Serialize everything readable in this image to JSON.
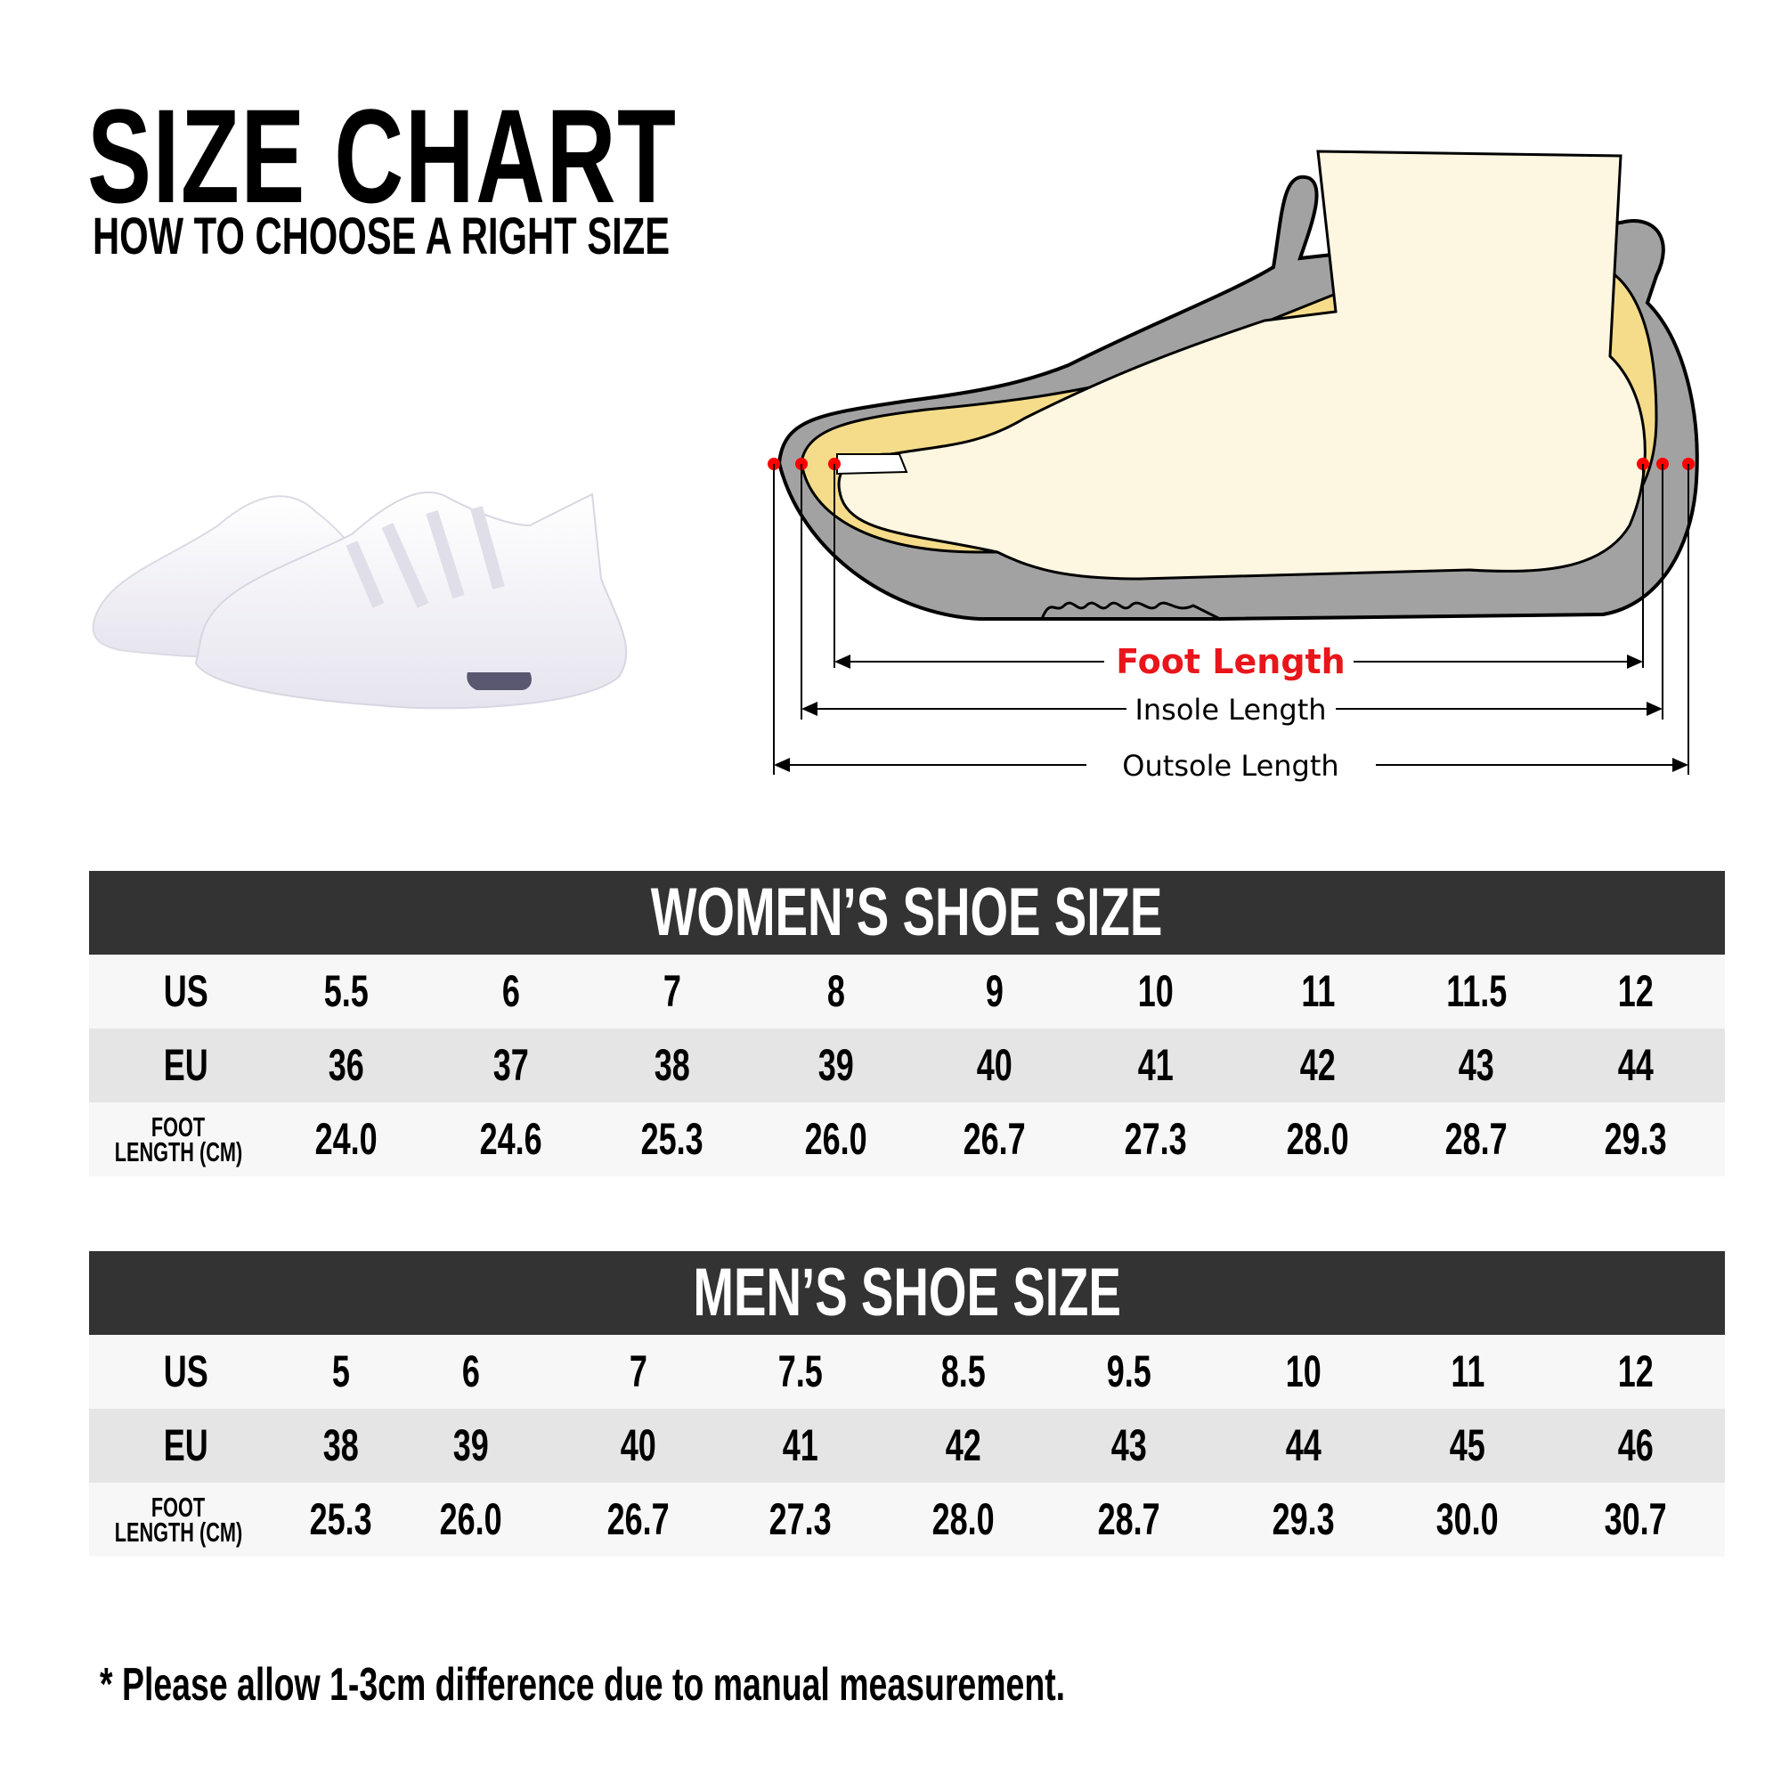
{
  "header": {
    "title": "SIZE CHART",
    "subtitle": "HOW TO CHOOSE A RIGHT SIZE"
  },
  "diagram": {
    "foot_length": "Foot Length",
    "insole_length": "Insole Length",
    "outsole_length": "Outsole Length",
    "colors": {
      "foot_length": "#e8161b",
      "marker": "#ff0000",
      "sole": "#a0a0a0",
      "insole": "#f5dc8a",
      "foot": "#fdf6e1"
    }
  },
  "women": {
    "title": "WOMEN’S SHOE SIZE",
    "labels": {
      "us": "US",
      "eu": "EU",
      "foot_length_1": "FOOT",
      "foot_length_2": "LENGTH (CM)"
    },
    "us": [
      "5.5",
      "6",
      "7",
      "8",
      "9",
      "10",
      "11",
      "11.5",
      "12"
    ],
    "eu": [
      "36",
      "37",
      "38",
      "39",
      "40",
      "41",
      "42",
      "43",
      "44"
    ],
    "foot_length": [
      "24.0",
      "24.6",
      "25.3",
      "26.0",
      "26.7",
      "27.3",
      "28.0",
      "28.7",
      "29.3"
    ]
  },
  "men": {
    "title": "MEN’S SHOE SIZE",
    "labels": {
      "us": "US",
      "eu": "EU",
      "foot_length_1": "FOOT",
      "foot_length_2": "LENGTH (CM)"
    },
    "us": [
      "5",
      "6",
      "7",
      "7.5",
      "8.5",
      "9.5",
      "10",
      "11",
      "12"
    ],
    "eu": [
      "38",
      "39",
      "40",
      "41",
      "42",
      "43",
      "44",
      "45",
      "46"
    ],
    "foot_length": [
      "25.3",
      "26.0",
      "26.7",
      "27.3",
      "28.0",
      "28.7",
      "29.3",
      "30.0",
      "30.7"
    ]
  },
  "note": "* Please allow 1-3cm difference due to manual measurement."
}
